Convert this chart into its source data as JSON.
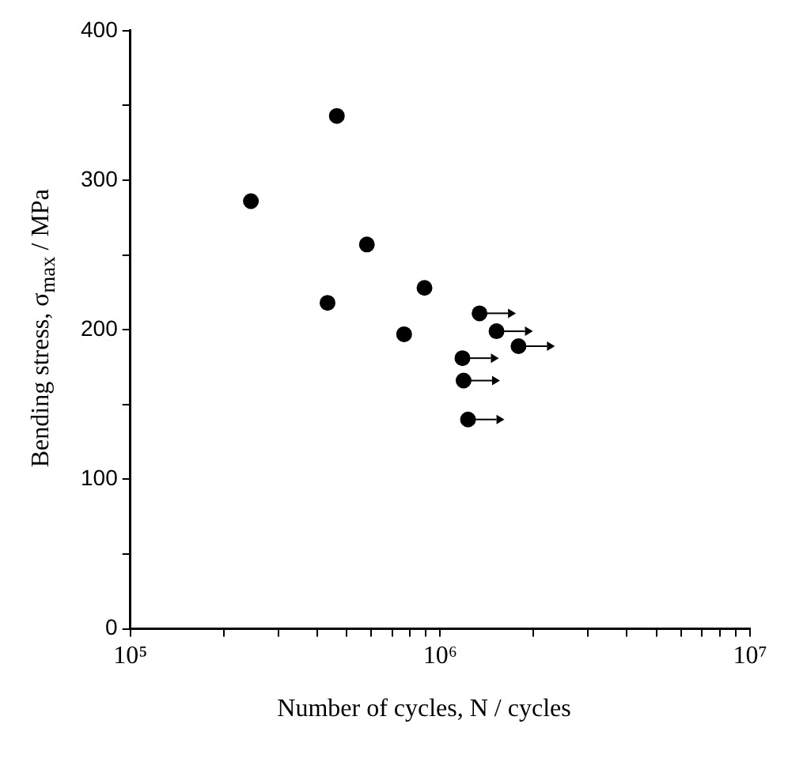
{
  "chart_data": {
    "type": "scatter",
    "xlabel": "Number of  cycles, N / cycles",
    "ylabel": "Bending stress,   σ$_{max}$ / MPa",
    "log": "x",
    "marker": "circle",
    "grid": false,
    "xlim": [
      100000,
      10000000
    ],
    "xticks": [
      {
        "value": 100000,
        "label": "10⁵"
      },
      {
        "value": 200000,
        "label": null
      },
      {
        "value": 300000,
        "label": null
      },
      {
        "value": 400000,
        "label": null
      },
      {
        "value": 500000,
        "label": null
      },
      {
        "value": 600000,
        "label": null
      },
      {
        "value": 700000,
        "label": null
      },
      {
        "value": 800000,
        "label": null
      },
      {
        "value": 900000,
        "label": null
      },
      {
        "value": 1000000,
        "label": "10⁶"
      },
      {
        "value": 2000000,
        "label": null
      },
      {
        "value": 3000000,
        "label": null
      },
      {
        "value": 4000000,
        "label": null
      },
      {
        "value": 5000000,
        "label": null
      },
      {
        "value": 6000000,
        "label": null
      },
      {
        "value": 7000000,
        "label": null
      },
      {
        "value": 8000000,
        "label": null
      },
      {
        "value": 9000000,
        "label": null
      },
      {
        "value": 10000000,
        "label": "10⁷"
      }
    ],
    "ylim": [
      0,
      400
    ],
    "yticks": [
      0,
      {
        "value": 50,
        "label": null
      },
      100,
      {
        "value": 150,
        "label": null
      },
      200,
      {
        "value": 250,
        "label": null
      },
      300,
      {
        "value": 350,
        "label": null
      },
      400
    ],
    "series": [
      {
        "color": "#000000",
        "x": [
          245000,
          464000,
          433000,
          580000,
          765000,
          890000
        ],
        "values": [
          286,
          343,
          218,
          257,
          197,
          228
        ]
      },
      {
        "color": "#000000",
        "x": [
          1340000,
          1520000,
          1790000,
          1180000,
          1190000,
          1230000
        ],
        "values": [
          211,
          199,
          189,
          181,
          166,
          140
        ]
      }
    ]
  }
}
